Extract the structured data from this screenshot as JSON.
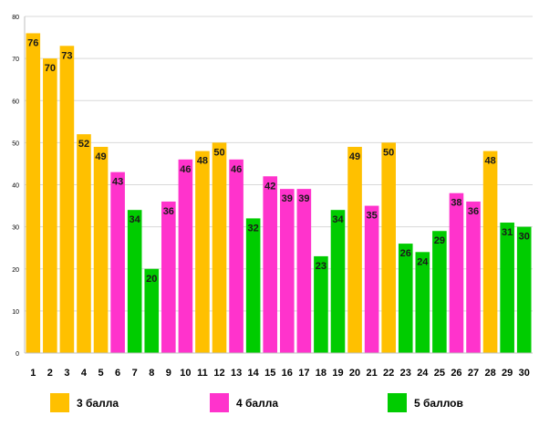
{
  "chart_data": {
    "type": "bar",
    "title": "",
    "xlabel": "",
    "ylabel": "",
    "ylim": [
      0,
      80
    ],
    "yticks": [
      0,
      10,
      20,
      30,
      40,
      50,
      60,
      70,
      80
    ],
    "grid": true,
    "legend_position": "bottom",
    "categories": [
      "1",
      "2",
      "3",
      "4",
      "5",
      "6",
      "7",
      "8",
      "9",
      "10",
      "11",
      "12",
      "13",
      "14",
      "15",
      "16",
      "17",
      "18",
      "19",
      "20",
      "21",
      "22",
      "23",
      "24",
      "25",
      "26",
      "27",
      "28",
      "29",
      "30"
    ],
    "values": [
      76,
      70,
      73,
      52,
      49,
      43,
      34,
      20,
      36,
      46,
      48,
      50,
      46,
      32,
      42,
      39,
      39,
      23,
      34,
      49,
      35,
      50,
      26,
      24,
      29,
      38,
      36,
      48,
      31,
      30
    ],
    "groups": [
      0,
      0,
      0,
      0,
      0,
      1,
      2,
      2,
      1,
      1,
      0,
      0,
      1,
      2,
      1,
      1,
      1,
      2,
      2,
      0,
      1,
      0,
      2,
      2,
      2,
      1,
      1,
      0,
      2,
      2
    ],
    "series": [
      {
        "name": "3 балла",
        "color": "#FFC000"
      },
      {
        "name": "4 балла",
        "color": "#FF33CC"
      },
      {
        "name": "5 баллов",
        "color": "#00CC00"
      }
    ]
  }
}
